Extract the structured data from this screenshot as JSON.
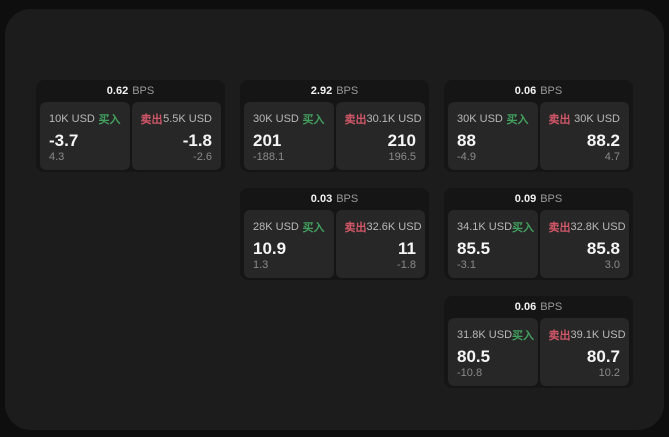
{
  "colors": {
    "page_bg": "#0e0e0e",
    "window_bg": "#1c1c1c",
    "card_bg": "#151515",
    "panel_bg": "#272727",
    "buy_green": "#42a05e",
    "sell_red": "#d15768"
  },
  "labels": {
    "bps_unit": "BPS",
    "buy": "买入",
    "sell": "卖出"
  },
  "cards": [
    {
      "row": 1,
      "col": 1,
      "bps": "0.62",
      "buy": {
        "amount": "10K USD",
        "value": "-3.7",
        "change": "4.3"
      },
      "sell": {
        "amount": "5.5K USD",
        "value": "-1.8",
        "change": "-2.6"
      }
    },
    {
      "row": 1,
      "col": 2,
      "bps": "2.92",
      "buy": {
        "amount": "30K USD",
        "value": "201",
        "change": "-188.1"
      },
      "sell": {
        "amount": "30.1K USD",
        "value": "210",
        "change": "196.5"
      }
    },
    {
      "row": 1,
      "col": 3,
      "bps": "0.06",
      "buy": {
        "amount": "30K USD",
        "value": "88",
        "change": "-4.9"
      },
      "sell": {
        "amount": "30K USD",
        "value": "88.2",
        "change": "4.7"
      }
    },
    {
      "row": 2,
      "col": 2,
      "bps": "0.03",
      "buy": {
        "amount": "28K USD",
        "value": "10.9",
        "change": "1.3"
      },
      "sell": {
        "amount": "32.6K USD",
        "value": "11",
        "change": "-1.8"
      }
    },
    {
      "row": 2,
      "col": 3,
      "bps": "0.09",
      "buy": {
        "amount": "34.1K USD",
        "value": "85.5",
        "change": "-3.1"
      },
      "sell": {
        "amount": "32.8K USD",
        "value": "85.8",
        "change": "3.0"
      }
    },
    {
      "row": 3,
      "col": 3,
      "bps": "0.06",
      "buy": {
        "amount": "31.8K USD",
        "value": "80.5",
        "change": "-10.8"
      },
      "sell": {
        "amount": "39.1K USD",
        "value": "80.7",
        "change": "10.2"
      }
    }
  ]
}
